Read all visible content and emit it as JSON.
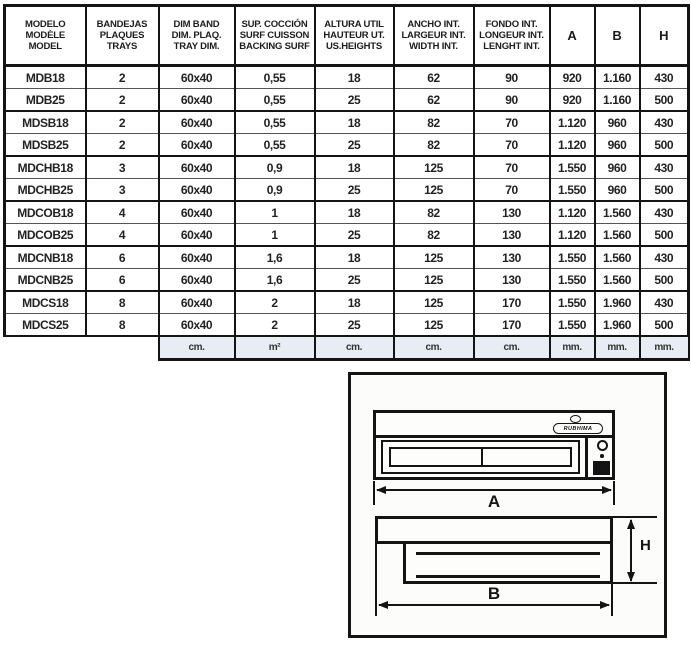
{
  "colors": {
    "border": "#141414",
    "units_row_bg": "#e7edf2",
    "page_bg": "#ffffff"
  },
  "table": {
    "headers": [
      {
        "lines": [
          "MODELO",
          "MODÈLE",
          "MODEL"
        ]
      },
      {
        "lines": [
          "BANDEJAS",
          "PLAQUES",
          "TRAYS"
        ]
      },
      {
        "lines": [
          "DIM BAND",
          "DIM. PLAQ.",
          "TRAY DIM."
        ]
      },
      {
        "lines": [
          "SUP. COCCIÓN",
          "SURF CUISSON",
          "BACKING SURF"
        ]
      },
      {
        "lines": [
          "ALTURA UTIL",
          "HAUTEUR UT.",
          "US.HEIGHTS"
        ]
      },
      {
        "lines": [
          "ANCHO INT.",
          "LARGEUR INT.",
          "WIDTH INT."
        ]
      },
      {
        "lines": [
          "FONDO INT.",
          "LONGEUR INT.",
          "LENGHT INT."
        ]
      },
      {
        "lines": [
          "A"
        ]
      },
      {
        "lines": [
          "B"
        ]
      },
      {
        "lines": [
          "H"
        ]
      }
    ],
    "rows": [
      [
        "MDB18",
        "2",
        "60x40",
        "0,55",
        "18",
        "62",
        "90",
        "920",
        "1.160",
        "430"
      ],
      [
        "MDB25",
        "2",
        "60x40",
        "0,55",
        "25",
        "62",
        "90",
        "920",
        "1.160",
        "500"
      ],
      [
        "MDSB18",
        "2",
        "60x40",
        "0,55",
        "18",
        "82",
        "70",
        "1.120",
        "960",
        "430"
      ],
      [
        "MDSB25",
        "2",
        "60x40",
        "0,55",
        "25",
        "82",
        "70",
        "1.120",
        "960",
        "500"
      ],
      [
        "MDCHB18",
        "3",
        "60x40",
        "0,9",
        "18",
        "125",
        "70",
        "1.550",
        "960",
        "430"
      ],
      [
        "MDCHB25",
        "3",
        "60x40",
        "0,9",
        "25",
        "125",
        "70",
        "1.550",
        "960",
        "500"
      ],
      [
        "MDCOB18",
        "4",
        "60x40",
        "1",
        "18",
        "82",
        "130",
        "1.120",
        "1.560",
        "430"
      ],
      [
        "MDCOB25",
        "4",
        "60x40",
        "1",
        "25",
        "82",
        "130",
        "1.120",
        "1.560",
        "500"
      ],
      [
        "MDCNB18",
        "6",
        "60x40",
        "1,6",
        "18",
        "125",
        "130",
        "1.550",
        "1.560",
        "430"
      ],
      [
        "MDCNB25",
        "6",
        "60x40",
        "1,6",
        "25",
        "125",
        "130",
        "1.550",
        "1.560",
        "500"
      ],
      [
        "MDCS18",
        "8",
        "60x40",
        "2",
        "18",
        "125",
        "170",
        "1.550",
        "1.960",
        "430"
      ],
      [
        "MDCS25",
        "8",
        "60x40",
        "2",
        "25",
        "125",
        "170",
        "1.550",
        "1.960",
        "500"
      ]
    ],
    "units": [
      "cm.",
      "m²",
      "cm.",
      "cm.",
      "cm.",
      "mm.",
      "mm.",
      "mm."
    ]
  },
  "diagram": {
    "brand": "RUBHIMA",
    "label_a": "A",
    "label_b": "B",
    "label_h": "H"
  }
}
